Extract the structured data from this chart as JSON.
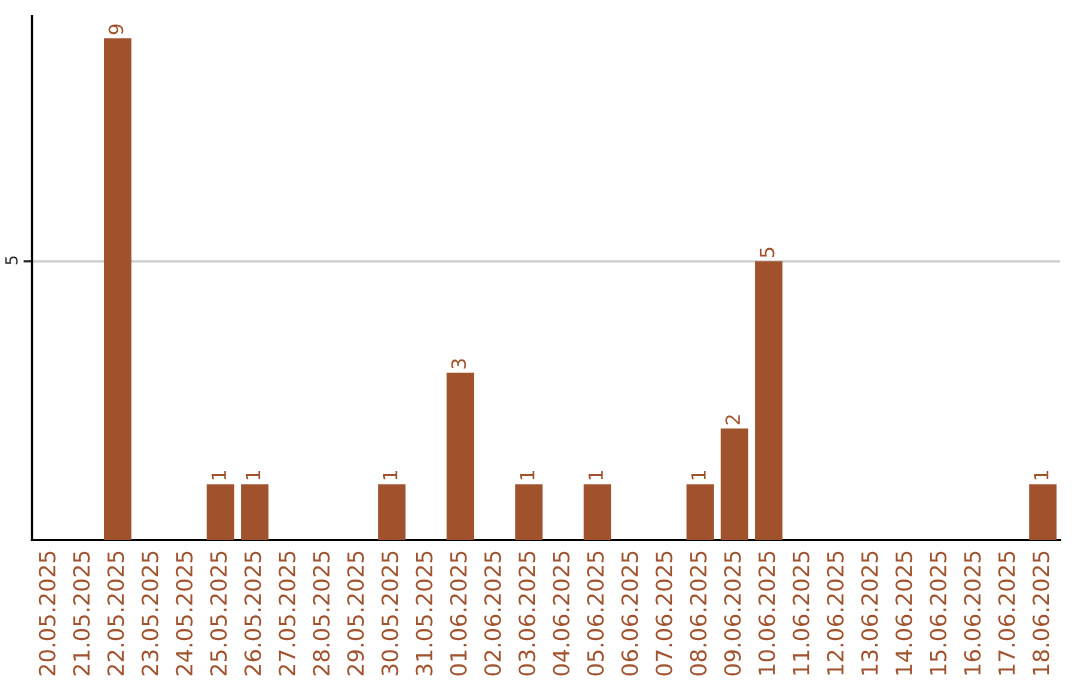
{
  "chart_data": {
    "type": "bar",
    "categories": [
      "20.05.2025",
      "21.05.2025",
      "22.05.2025",
      "23.05.2025",
      "24.05.2025",
      "25.05.2025",
      "26.05.2025",
      "27.05.2025",
      "28.05.2025",
      "29.05.2025",
      "30.05.2025",
      "31.05.2025",
      "01.06.2025",
      "02.06.2025",
      "03.06.2025",
      "04.06.2025",
      "05.06.2025",
      "06.06.2025",
      "07.06.2025",
      "08.06.2025",
      "09.06.2025",
      "10.06.2025",
      "11.06.2025",
      "12.06.2025",
      "13.06.2025",
      "14.06.2025",
      "15.06.2025",
      "16.06.2025",
      "17.06.2025",
      "18.06.2025"
    ],
    "values": [
      0,
      0,
      9,
      0,
      0,
      1,
      1,
      0,
      0,
      0,
      1,
      0,
      3,
      0,
      1,
      0,
      1,
      0,
      0,
      1,
      2,
      5,
      0,
      0,
      0,
      0,
      0,
      0,
      0,
      1
    ],
    "value_labels": [
      null,
      null,
      "9",
      null,
      null,
      "1",
      "1",
      null,
      null,
      null,
      "1",
      null,
      "3",
      null,
      "1",
      null,
      "1",
      null,
      null,
      "1",
      "2",
      "5",
      null,
      null,
      null,
      null,
      null,
      null,
      null,
      "1"
    ],
    "color": "#a0522d",
    "ylim": [
      0,
      9.4
    ],
    "yticks": [
      5
    ],
    "grid": "y",
    "legend": false
  }
}
